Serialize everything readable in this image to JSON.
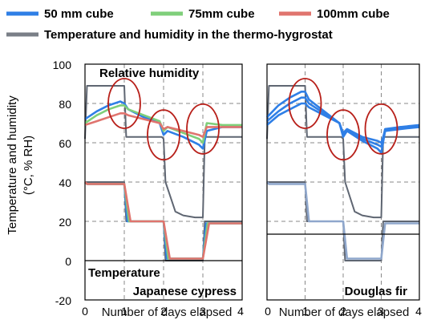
{
  "chart_data": {
    "type": "line",
    "legend": [
      {
        "name": "50 mm cube",
        "color": "#2f7fe6"
      },
      {
        "name": "75mm cube",
        "color": "#7fcf7a"
      },
      {
        "name": "100mm cube",
        "color": "#e0746e"
      },
      {
        "name": "Temperature and humidity in the thermo-hygrostat",
        "color": "#7a7f87"
      }
    ],
    "y_axis": {
      "label_line1": "Temperature and humidity",
      "label_line2": "(°C, % RH)",
      "ylim": [
        -20,
        100
      ],
      "ticks": [
        "100",
        "80",
        "60",
        "40",
        "20",
        "0",
        "-20"
      ]
    },
    "x_axis": {
      "label": "Number of days elapsed",
      "xlim": [
        0,
        4
      ],
      "ticks": [
        "0",
        "1",
        "2",
        "3",
        "4"
      ]
    },
    "panels": [
      {
        "species": "Japanese cypress",
        "annotation_top": "Relative humidity",
        "annotation_bottom": "Temperature",
        "highlight_days": [
          1,
          2,
          3
        ],
        "series": [
          {
            "name": "Temperature and humidity in the thermo-hygrostat",
            "kind": "rh",
            "x": [
              0,
              0.05,
              0.1,
              0.9,
              1.0,
              1.05,
              1.95,
              2.0,
              2.05,
              2.3,
              2.5,
              2.8,
              2.95,
              3.0,
              3.05,
              3.5,
              4.0
            ],
            "y": [
              62,
              89,
              89,
              89,
              89,
              63,
              63,
              62,
              40,
              25,
              23,
              22,
              22,
              22,
              63,
              63,
              63
            ]
          },
          {
            "name": "Temperature and humidity in the thermo-hygrostat",
            "kind": "temp",
            "x": [
              0,
              0.05,
              0.95,
              1.0,
              1.05,
              1.95,
              2.0,
              2.05,
              2.95,
              3.0,
              3.05,
              4.0
            ],
            "y": [
              40,
              40,
              40,
              40,
              20,
              20,
              20,
              0,
              0,
              0,
              20,
              20
            ]
          },
          {
            "name": "50 mm cube",
            "kind": "rh",
            "x": [
              0,
              0.3,
              0.6,
              0.9,
              1.0,
              1.1,
              1.5,
              1.9,
              2.0,
              2.1,
              2.5,
              2.9,
              3.0,
              3.1,
              3.5,
              4.0
            ],
            "y": [
              72,
              76,
              79,
              81,
              80,
              77,
              73,
              70,
              64,
              66,
              63,
              59,
              57,
              66,
              68,
              68
            ]
          },
          {
            "name": "75mm cube",
            "kind": "rh",
            "x": [
              0,
              0.3,
              0.6,
              0.9,
              1.0,
              1.1,
              1.5,
              1.9,
              2.0,
              2.1,
              2.5,
              2.9,
              3.0,
              3.1,
              3.5,
              4.0
            ],
            "y": [
              70,
              74,
              77,
              79,
              79,
              77,
              74,
              71,
              66,
              68,
              65,
              62,
              60,
              70,
              69,
              69
            ]
          },
          {
            "name": "100mm cube",
            "kind": "rh",
            "x": [
              0,
              0.3,
              0.6,
              0.9,
              1.0,
              1.1,
              1.5,
              1.9,
              2.0,
              2.1,
              2.5,
              2.9,
              3.0,
              3.1,
              3.5,
              4.0
            ],
            "y": [
              69,
              71,
              73,
              75,
              75,
              74,
              72,
              70,
              67,
              68,
              66,
              64,
              63,
              68,
              68,
              68
            ]
          },
          {
            "name": "50 mm cube",
            "kind": "temp",
            "x": [
              0,
              0.05,
              0.95,
              1.0,
              1.08,
              1.95,
              2.0,
              2.08,
              2.95,
              3.0,
              3.08,
              4.0
            ],
            "y": [
              40,
              39,
              39,
              39,
              20,
              20,
              20,
              1,
              1,
              1,
              19,
              19
            ]
          },
          {
            "name": "75mm cube",
            "kind": "temp",
            "x": [
              0,
              0.05,
              0.95,
              1.0,
              1.12,
              1.95,
              2.0,
              2.12,
              2.95,
              3.0,
              3.12,
              4.0
            ],
            "y": [
              40,
              39,
              39,
              39,
              20,
              20,
              20,
              1,
              1,
              1,
              19,
              19
            ]
          },
          {
            "name": "100mm cube",
            "kind": "temp",
            "x": [
              0,
              0.05,
              0.95,
              1.0,
              1.16,
              1.95,
              2.0,
              2.16,
              2.95,
              3.0,
              3.16,
              4.0
            ],
            "y": [
              40,
              39,
              39,
              39,
              20,
              20,
              20,
              1,
              1,
              1,
              19,
              19
            ]
          }
        ]
      },
      {
        "species": "Douglas fir",
        "annotation_top": "",
        "annotation_bottom": "",
        "highlight_days": [
          1,
          2,
          3
        ],
        "series": [
          {
            "name": "Temperature and humidity in the thermo-hygrostat",
            "kind": "rh",
            "x": [
              0,
              0.05,
              0.1,
              0.9,
              1.0,
              1.05,
              1.95,
              2.0,
              2.05,
              2.3,
              2.5,
              2.8,
              2.95,
              3.0,
              3.05,
              3.5,
              4.0
            ],
            "y": [
              62,
              89,
              89,
              89,
              89,
              63,
              63,
              62,
              40,
              25,
              23,
              22,
              22,
              22,
              63,
              63,
              63
            ]
          },
          {
            "name": "Temperature and humidity in the thermo-hygrostat",
            "kind": "temp",
            "x": [
              0,
              0.05,
              0.95,
              1.0,
              1.05,
              1.95,
              2.0,
              2.05,
              2.95,
              3.0,
              3.05,
              4.0
            ],
            "y": [
              40,
              40,
              40,
              40,
              20,
              20,
              20,
              0,
              0,
              0,
              20,
              20
            ]
          },
          {
            "name": "50 mm cube",
            "kind": "rh",
            "x": [
              0,
              0.3,
              0.6,
              0.9,
              1.0,
              1.1,
              1.5,
              1.9,
              2.0,
              2.1,
              2.5,
              2.9,
              3.0,
              3.1,
              3.5,
              4.0
            ],
            "y": [
              73,
              79,
              83,
              86,
              86,
              82,
              76,
              70,
              63,
              66,
              61,
              57,
              55,
              66,
              68,
              69
            ]
          },
          {
            "name": "50 mm cube",
            "kind": "rh",
            "x": [
              0,
              0.3,
              0.6,
              0.9,
              1.0,
              1.1,
              1.5,
              1.9,
              2.0,
              2.1,
              2.5,
              2.9,
              3.0,
              3.1,
              3.5,
              4.0
            ],
            "y": [
              71,
              76,
              80,
              83,
              83,
              80,
              75,
              70,
              64,
              66,
              62,
              59,
              58,
              67,
              68,
              68
            ]
          },
          {
            "name": "50 mm cube",
            "kind": "rh",
            "x": [
              0,
              0.3,
              0.6,
              0.9,
              1.0,
              1.1,
              1.5,
              1.9,
              2.0,
              2.1,
              2.5,
              2.9,
              3.0,
              3.1,
              3.5,
              4.0
            ],
            "y": [
              69,
              74,
              77,
              80,
              80,
              78,
              74,
              70,
              65,
              67,
              63,
              61,
              60,
              66,
              67,
              68
            ]
          },
          {
            "name": "50 mm cube",
            "kind": "temp",
            "x": [
              0,
              0.05,
              0.95,
              1.0,
              1.1,
              1.95,
              2.0,
              2.1,
              2.95,
              3.0,
              3.1,
              4.0
            ],
            "y": [
              40,
              39,
              39,
              39,
              20,
              20,
              20,
              1,
              1,
              1,
              19,
              19
            ]
          }
        ]
      }
    ]
  }
}
